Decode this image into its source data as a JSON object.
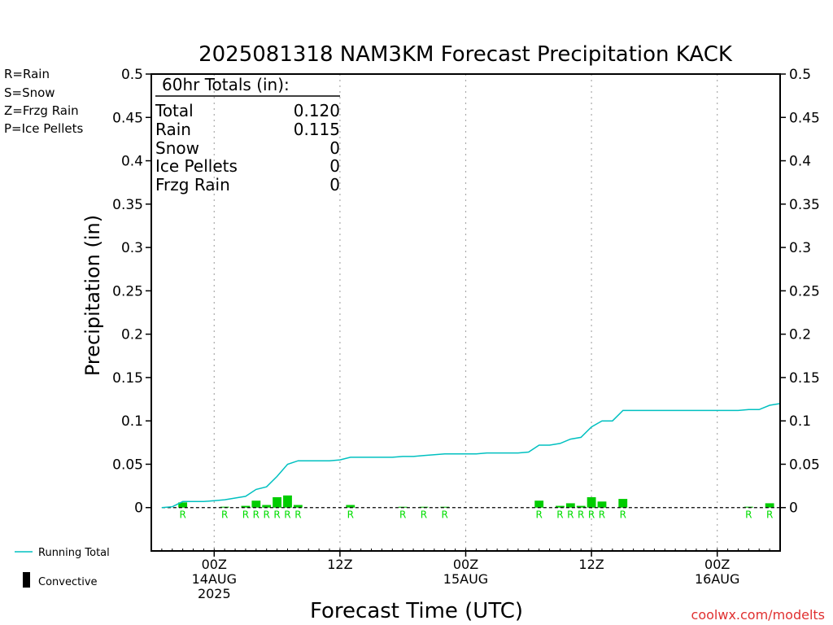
{
  "chart_data": {
    "type": "bar",
    "title": "2025081318 NAM3KM Forecast Precipitation KACK",
    "xlabel": "Forecast Time (UTC)",
    "ylabel": "Precipitation (in)",
    "ylim": [
      -0.05,
      0.5
    ],
    "y_ticks": [
      "0.5",
      "0.45",
      "0.4",
      "0.35",
      "0.3",
      "0.25",
      "0.2",
      "0.15",
      "0.1",
      "0.05",
      "0"
    ],
    "x_unit": "forecast hour",
    "xlim": [
      0,
      60
    ],
    "x_ticks": [
      {
        "hour": 6,
        "lines": [
          "00Z",
          "14AUG",
          "2025"
        ]
      },
      {
        "hour": 18,
        "lines": [
          "12Z"
        ]
      },
      {
        "hour": 30,
        "lines": [
          "00Z",
          "15AUG"
        ]
      },
      {
        "hour": 42,
        "lines": [
          "12Z"
        ]
      },
      {
        "hour": 54,
        "lines": [
          "00Z",
          "16AUG"
        ]
      }
    ],
    "grid_x": true,
    "precip_type_legend": [
      {
        "text": "R=Rain",
        "color": "#00dd00"
      },
      {
        "text": "S=Snow",
        "color": "#3333ff"
      },
      {
        "text": "Z=Frzg Rain",
        "color": "#ff8c00"
      },
      {
        "text": "P=Ice Pellets",
        "color": "#ff1493"
      }
    ],
    "series_legend": [
      {
        "text": "Running Total",
        "color": "#00c0c0",
        "kind": "line"
      },
      {
        "text": "Convective",
        "color": "#000000",
        "kind": "bar"
      }
    ],
    "totals_box": {
      "header": "60hr Totals (in):",
      "rows": [
        {
          "label": "Total",
          "value": "0.120"
        },
        {
          "label": "Rain",
          "value": "0.115"
        },
        {
          "label": "Snow",
          "value": "0"
        },
        {
          "label": "Ice Pellets",
          "value": "0"
        },
        {
          "label": "Frzg Rain",
          "value": "0"
        }
      ]
    },
    "bars": [
      {
        "hour": 3,
        "value": 0.006,
        "type": "R"
      },
      {
        "hour": 7,
        "value": 0.001,
        "type": "R"
      },
      {
        "hour": 9,
        "value": 0.002,
        "type": "R"
      },
      {
        "hour": 10,
        "value": 0.008,
        "type": "R"
      },
      {
        "hour": 11,
        "value": 0.003,
        "type": "R"
      },
      {
        "hour": 12,
        "value": 0.012,
        "type": "R"
      },
      {
        "hour": 13,
        "value": 0.014,
        "type": "R"
      },
      {
        "hour": 14,
        "value": 0.003,
        "type": "R"
      },
      {
        "hour": 19,
        "value": 0.003,
        "type": "R"
      },
      {
        "hour": 24,
        "value": 0.0005,
        "type": "R"
      },
      {
        "hour": 26,
        "value": 0.0005,
        "type": "R"
      },
      {
        "hour": 28,
        "value": 0.0005,
        "type": "R"
      },
      {
        "hour": 37,
        "value": 0.008,
        "type": "R"
      },
      {
        "hour": 39,
        "value": 0.002,
        "type": "R"
      },
      {
        "hour": 40,
        "value": 0.005,
        "type": "R"
      },
      {
        "hour": 41,
        "value": 0.002,
        "type": "R"
      },
      {
        "hour": 42,
        "value": 0.012,
        "type": "R"
      },
      {
        "hour": 43,
        "value": 0.007,
        "type": "R"
      },
      {
        "hour": 45,
        "value": 0.01,
        "type": "R"
      },
      {
        "hour": 57,
        "value": 0.001,
        "type": "R"
      },
      {
        "hour": 59,
        "value": 0.005,
        "type": "R"
      }
    ],
    "running_total": {
      "name": "Running Total",
      "points": [
        [
          1,
          0.0
        ],
        [
          2,
          0.001
        ],
        [
          3,
          0.007
        ],
        [
          4,
          0.007
        ],
        [
          5,
          0.007
        ],
        [
          6,
          0.008
        ],
        [
          7,
          0.009
        ],
        [
          8,
          0.011
        ],
        [
          9,
          0.013
        ],
        [
          10,
          0.021
        ],
        [
          11,
          0.024
        ],
        [
          12,
          0.036
        ],
        [
          13,
          0.05
        ],
        [
          14,
          0.054
        ],
        [
          15,
          0.054
        ],
        [
          16,
          0.054
        ],
        [
          17,
          0.054
        ],
        [
          18,
          0.055
        ],
        [
          19,
          0.058
        ],
        [
          20,
          0.058
        ],
        [
          21,
          0.058
        ],
        [
          22,
          0.058
        ],
        [
          23,
          0.058
        ],
        [
          24,
          0.059
        ],
        [
          25,
          0.059
        ],
        [
          26,
          0.06
        ],
        [
          27,
          0.061
        ],
        [
          28,
          0.062
        ],
        [
          29,
          0.062
        ],
        [
          30,
          0.062
        ],
        [
          31,
          0.062
        ],
        [
          32,
          0.063
        ],
        [
          33,
          0.063
        ],
        [
          34,
          0.063
        ],
        [
          35,
          0.063
        ],
        [
          36,
          0.064
        ],
        [
          37,
          0.072
        ],
        [
          38,
          0.072
        ],
        [
          39,
          0.074
        ],
        [
          40,
          0.079
        ],
        [
          41,
          0.081
        ],
        [
          42,
          0.093
        ],
        [
          43,
          0.1
        ],
        [
          44,
          0.1
        ],
        [
          45,
          0.112
        ],
        [
          46,
          0.112
        ],
        [
          47,
          0.112
        ],
        [
          48,
          0.112
        ],
        [
          49,
          0.112
        ],
        [
          50,
          0.112
        ],
        [
          51,
          0.112
        ],
        [
          52,
          0.112
        ],
        [
          53,
          0.112
        ],
        [
          54,
          0.112
        ],
        [
          55,
          0.112
        ],
        [
          56,
          0.112
        ],
        [
          57,
          0.113
        ],
        [
          58,
          0.113
        ],
        [
          59,
          0.118
        ],
        [
          60,
          0.12
        ]
      ]
    },
    "colors": {
      "rain_bar": "#00cc00",
      "running_total": "#00c0c0",
      "grid": "#aaaaaa",
      "axis": "#000000"
    }
  },
  "credit": "coolwx.com/modelts"
}
